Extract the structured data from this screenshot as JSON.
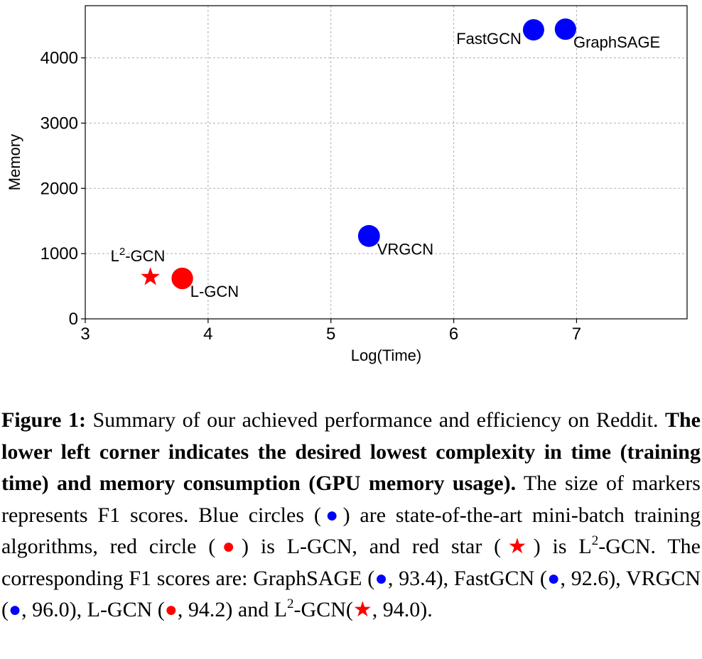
{
  "chart_data": {
    "type": "scatter",
    "xlabel": "Log(Time)",
    "ylabel": "Memory",
    "xlim": [
      3,
      7.9
    ],
    "ylim": [
      0,
      4800
    ],
    "xticks": [
      3,
      4,
      5,
      6,
      7
    ],
    "yticks": [
      0,
      1000,
      2000,
      3000,
      4000
    ],
    "grid": true,
    "points": [
      {
        "label": "FastGCN",
        "x": 6.65,
        "y": 4430,
        "f1": 92.6,
        "color": "#0000ff",
        "marker": "circle",
        "label_pos": "left"
      },
      {
        "label": "GraphSAGE",
        "x": 6.91,
        "y": 4440,
        "f1": 93.4,
        "color": "#0000ff",
        "marker": "circle",
        "label_pos": "right"
      },
      {
        "label": "VRGCN",
        "x": 5.31,
        "y": 1270,
        "f1": 96.0,
        "color": "#0000ff",
        "marker": "circle",
        "label_pos": "right"
      },
      {
        "label": "L-GCN",
        "x": 3.79,
        "y": 620,
        "f1": 94.2,
        "color": "#ff0000",
        "marker": "circle",
        "label_pos": "right"
      },
      {
        "label_base": "L",
        "label_sup": "2",
        "label_rest": "-GCN",
        "x": 3.53,
        "y": 640,
        "f1": 94.0,
        "color": "#ff0000",
        "marker": "star",
        "label_pos": "above"
      }
    ]
  },
  "caption": {
    "figure_label": "Figure 1:",
    "part1": " Summary of our achieved performance and efficiency on Reddit. ",
    "bold_part": "The lower left corner indicates the desired lowest complexity in time (training time) and memory consumption (GPU memory usage).",
    "part2": " The size of markers represents F1 scores. Blue circles (",
    "part3": ") are state-of-the-art mini-batch training algorithms, red circle (",
    "part4": ") is L-GCN, and red star (",
    "part5": ") is L",
    "sup1": "2",
    "part6": "-GCN. The corresponding F1 scores are: GraphSAGE (",
    "part7": ", 93.4), FastGCN (",
    "part8": ", 92.6), VRGCN (",
    "part9": ", 96.0), L-GCN (",
    "part10": ", 94.2) and L",
    "sup2": "2",
    "part11": "-GCN(",
    "part12": ", 94.0).",
    "dot_glyph": "●",
    "star_glyph": "★"
  }
}
